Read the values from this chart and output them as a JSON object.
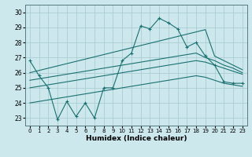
{
  "xlabel": "Humidex (Indice chaleur)",
  "background_color": "#cce8ec",
  "grid_color": "#aacdd4",
  "line_color": "#1a7070",
  "xlim": [
    -0.5,
    23.5
  ],
  "ylim": [
    22.5,
    30.5
  ],
  "yticks": [
    23,
    24,
    25,
    26,
    27,
    28,
    29,
    30
  ],
  "xticks": [
    0,
    1,
    2,
    3,
    4,
    5,
    6,
    7,
    8,
    9,
    10,
    11,
    12,
    13,
    14,
    15,
    16,
    17,
    18,
    19,
    20,
    21,
    22,
    23
  ],
  "hours": [
    0,
    1,
    2,
    3,
    4,
    5,
    6,
    7,
    8,
    9,
    10,
    11,
    12,
    13,
    14,
    15,
    16,
    17,
    18,
    19,
    20,
    21,
    22,
    23
  ],
  "line_main": [
    26.8,
    25.8,
    25.0,
    22.9,
    24.1,
    23.1,
    24.0,
    23.0,
    25.0,
    25.0,
    26.8,
    27.3,
    29.1,
    28.9,
    29.6,
    29.3,
    28.9,
    27.7,
    28.0,
    27.1,
    26.5,
    25.4,
    25.3,
    25.3
  ],
  "line_top": [
    26.0,
    26.15,
    26.3,
    26.45,
    26.6,
    26.75,
    26.9,
    27.05,
    27.2,
    27.35,
    27.5,
    27.65,
    27.8,
    27.95,
    28.1,
    28.25,
    28.4,
    28.55,
    28.7,
    28.85,
    27.1,
    26.8,
    26.5,
    26.2
  ],
  "line_mid1": [
    25.5,
    25.6,
    25.7,
    25.8,
    25.9,
    26.0,
    26.1,
    26.2,
    26.3,
    26.4,
    26.5,
    26.6,
    26.7,
    26.8,
    26.9,
    27.0,
    27.1,
    27.2,
    27.3,
    27.0,
    26.8,
    26.5,
    26.3,
    26.0
  ],
  "line_mid2": [
    25.0,
    25.1,
    25.2,
    25.3,
    25.4,
    25.5,
    25.6,
    25.7,
    25.8,
    25.9,
    26.0,
    26.1,
    26.2,
    26.3,
    26.4,
    26.5,
    26.6,
    26.7,
    26.8,
    26.7,
    26.5,
    26.3,
    26.1,
    25.9
  ],
  "line_bot": [
    24.0,
    24.1,
    24.2,
    24.3,
    24.4,
    24.5,
    24.6,
    24.7,
    24.8,
    24.9,
    25.0,
    25.1,
    25.2,
    25.3,
    25.4,
    25.5,
    25.6,
    25.7,
    25.8,
    25.7,
    25.5,
    25.3,
    25.2,
    25.1
  ]
}
